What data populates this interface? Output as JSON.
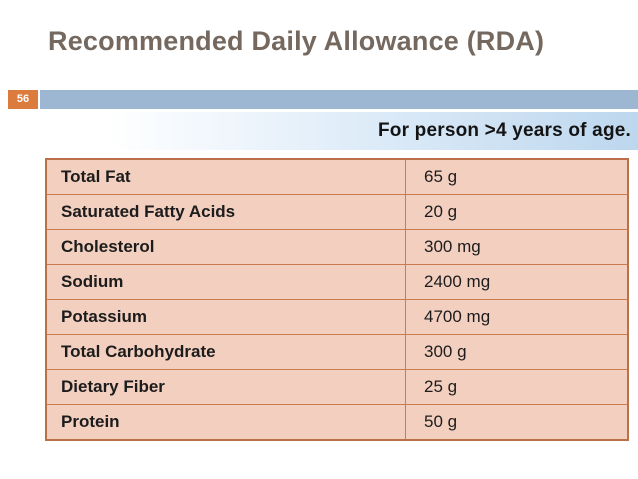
{
  "slide": {
    "title": "Recommended Daily Allowance (RDA)",
    "slide_number": "56",
    "subtitle": "For person >4 years of age."
  },
  "table": {
    "rows": [
      {
        "label": "Total Fat",
        "value": "65 g"
      },
      {
        "label": "Saturated Fatty Acids",
        "value": "20 g"
      },
      {
        "label": "Cholesterol",
        "value": "300 mg"
      },
      {
        "label": "Sodium",
        "value": "2400 mg"
      },
      {
        "label": "Potassium",
        "value": "4700 mg"
      },
      {
        "label": "Total Carbohydrate",
        "value": "300 g"
      },
      {
        "label": "Dietary Fiber",
        "value": "25 g"
      },
      {
        "label": "Protein",
        "value": "50 g"
      }
    ]
  },
  "colors": {
    "title_text": "#75685E",
    "page_box_bg": "#DC7B3E",
    "page_box_text": "#FFFFFF",
    "header_bar": "#9DB7D2",
    "banner_mid": "#E0EDF9",
    "banner_end": "#BDD7EE",
    "banner_text": "#141414",
    "table_bg": "#F3CFC0",
    "border_inner": "#CC7A50",
    "border_outer": "#BC7048",
    "cell_text": "#1C1C1C"
  }
}
